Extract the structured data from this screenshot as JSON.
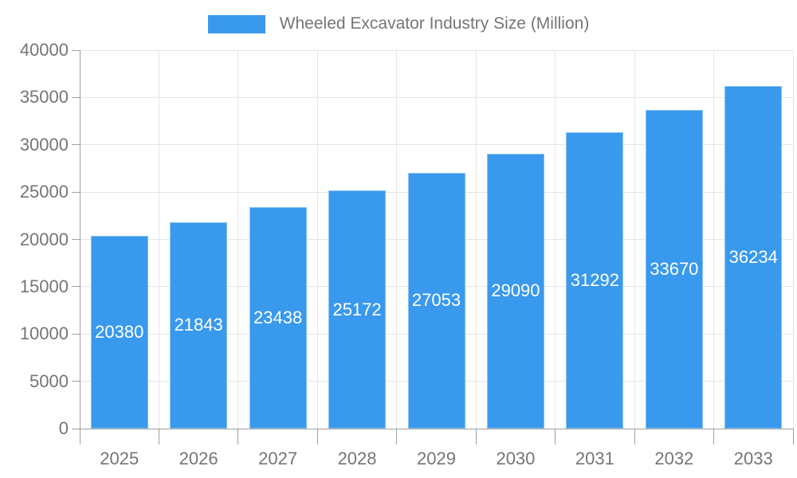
{
  "legend": {
    "label": "Wheeled Excavator Industry Size (Million)"
  },
  "chart_data": {
    "type": "bar",
    "title": "Wheeled Excavator Industry Size (Million)",
    "series_name": "Wheeled Excavator Industry Size (Million)",
    "categories": [
      "2025",
      "2026",
      "2027",
      "2028",
      "2029",
      "2030",
      "2031",
      "2032",
      "2033"
    ],
    "values": [
      20380,
      21843,
      23438,
      25172,
      27053,
      29090,
      31292,
      33670,
      36234
    ],
    "xlabel": "",
    "ylabel": "",
    "ylim": [
      0,
      40000
    ],
    "ytick_step": 5000,
    "ytick_labels": [
      "0",
      "5000",
      "10000",
      "15000",
      "20000",
      "25000",
      "30000",
      "35000",
      "40000"
    ],
    "grid": true,
    "legend_position": "top",
    "data_labels_inside_bars": true
  },
  "colors": {
    "bar": "#3999ec",
    "bar_label": "#ffffff",
    "axis_text": "#757575",
    "grid_line": "#e6e6e6",
    "axis_line": "#a0a0a0",
    "background": "#ffffff"
  }
}
